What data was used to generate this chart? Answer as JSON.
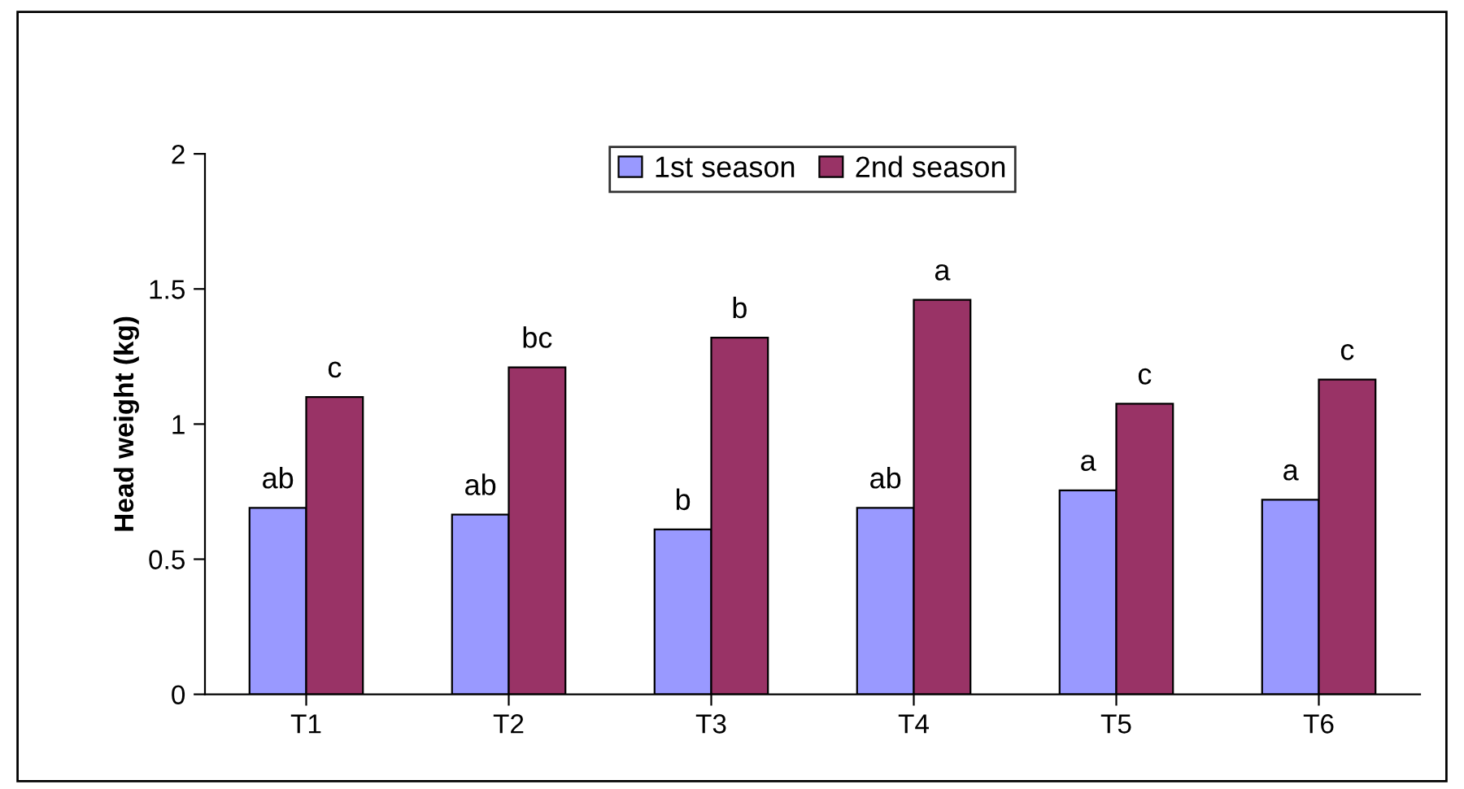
{
  "chart_data": {
    "type": "bar",
    "ylabel": "Head weight (kg)",
    "categories": [
      "T1",
      "T2",
      "T3",
      "T4",
      "T5",
      "T6"
    ],
    "series": [
      {
        "name": "1st season",
        "color": "#9999ff",
        "values": [
          0.69,
          0.665,
          0.61,
          0.69,
          0.755,
          0.72
        ],
        "value_labels": [
          "ab",
          "ab",
          "b",
          "ab",
          "a",
          "a"
        ]
      },
      {
        "name": "2nd season",
        "color": "#993366",
        "values": [
          1.1,
          1.21,
          1.32,
          1.46,
          1.075,
          1.165
        ],
        "value_labels": [
          "c",
          "bc",
          "b",
          "a",
          "c",
          "c"
        ]
      }
    ],
    "ylim": [
      0,
      2
    ],
    "yticks": [
      0,
      0.5,
      1,
      1.5,
      2
    ],
    "grid": false,
    "legend": "top"
  }
}
